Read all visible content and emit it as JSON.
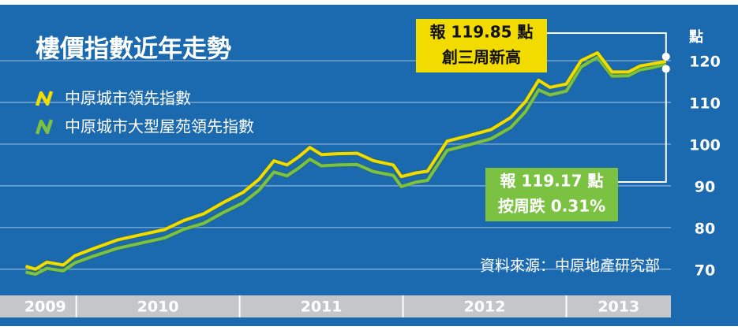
{
  "chart_data": {
    "type": "line",
    "title": "樓價指數近年走勢",
    "y_unit": "點",
    "source": "資料來源：中原地產研究部",
    "x": [
      2009.69,
      2009.75,
      2009.82,
      2009.92,
      2009.99,
      2010.11,
      2010.25,
      2010.4,
      2010.54,
      2010.66,
      2010.78,
      2010.9,
      2011.02,
      2011.12,
      2011.21,
      2011.29,
      2011.36,
      2011.43,
      2011.5,
      2011.6,
      2011.72,
      2011.82,
      2011.94,
      2011.99,
      2012.08,
      2012.15,
      2012.27,
      2012.42,
      2012.54,
      2012.66,
      2012.75,
      2012.83,
      2012.9,
      2013.0,
      2013.09,
      2013.19,
      2013.28,
      2013.38,
      2013.45,
      2013.52,
      2013.61
    ],
    "series": [
      {
        "name": "中原城市領先指數",
        "color": "#f2dc00",
        "values": [
          70.7,
          70.0,
          71.7,
          71.0,
          73.2,
          75.0,
          77.0,
          78.3,
          79.5,
          81.7,
          83.3,
          86.0,
          88.4,
          91.6,
          96.0,
          95.0,
          96.9,
          99.2,
          97.5,
          97.7,
          97.8,
          96.0,
          95.0,
          92.2,
          93.1,
          93.5,
          100.7,
          102.2,
          103.5,
          106.4,
          110.2,
          115.3,
          113.6,
          114.4,
          120.0,
          121.9,
          117.3,
          117.3,
          118.7,
          119.2,
          119.85
        ]
      },
      {
        "name": "中原城市大型屋苑領先指數",
        "color": "#7cc242",
        "values": [
          69.3,
          68.8,
          70.2,
          69.6,
          71.5,
          73.2,
          75.0,
          76.3,
          77.5,
          79.6,
          81.0,
          83.6,
          85.9,
          89.0,
          93.3,
          92.4,
          94.2,
          96.4,
          94.8,
          95.0,
          95.1,
          93.4,
          92.5,
          89.8,
          90.9,
          91.3,
          98.5,
          100.0,
          101.3,
          104.0,
          107.8,
          113.0,
          111.8,
          112.7,
          118.5,
          120.8,
          116.3,
          116.4,
          117.8,
          118.3,
          119.17
        ]
      }
    ],
    "xlim": [
      2009.62,
      2013.64
    ],
    "xticks": [
      {
        "value": 2009,
        "label": "2009"
      },
      {
        "value": 2010,
        "label": "2010"
      },
      {
        "value": 2011,
        "label": "2011"
      },
      {
        "value": 2012,
        "label": "2012"
      },
      {
        "value": 2013,
        "label": "2013"
      }
    ],
    "ylim": [
      67.5,
      127
    ],
    "yticks": [
      70,
      80,
      90,
      100,
      110,
      120
    ],
    "grid": true,
    "annotations": [
      {
        "lines": [
          "報 119.85 點",
          "創三周新高"
        ],
        "color": "#f2dc00",
        "series": 0
      },
      {
        "lines": [
          "報 119.17 點",
          "按周跌 0.31%"
        ],
        "color": "#7cc242",
        "series": 1
      }
    ]
  }
}
